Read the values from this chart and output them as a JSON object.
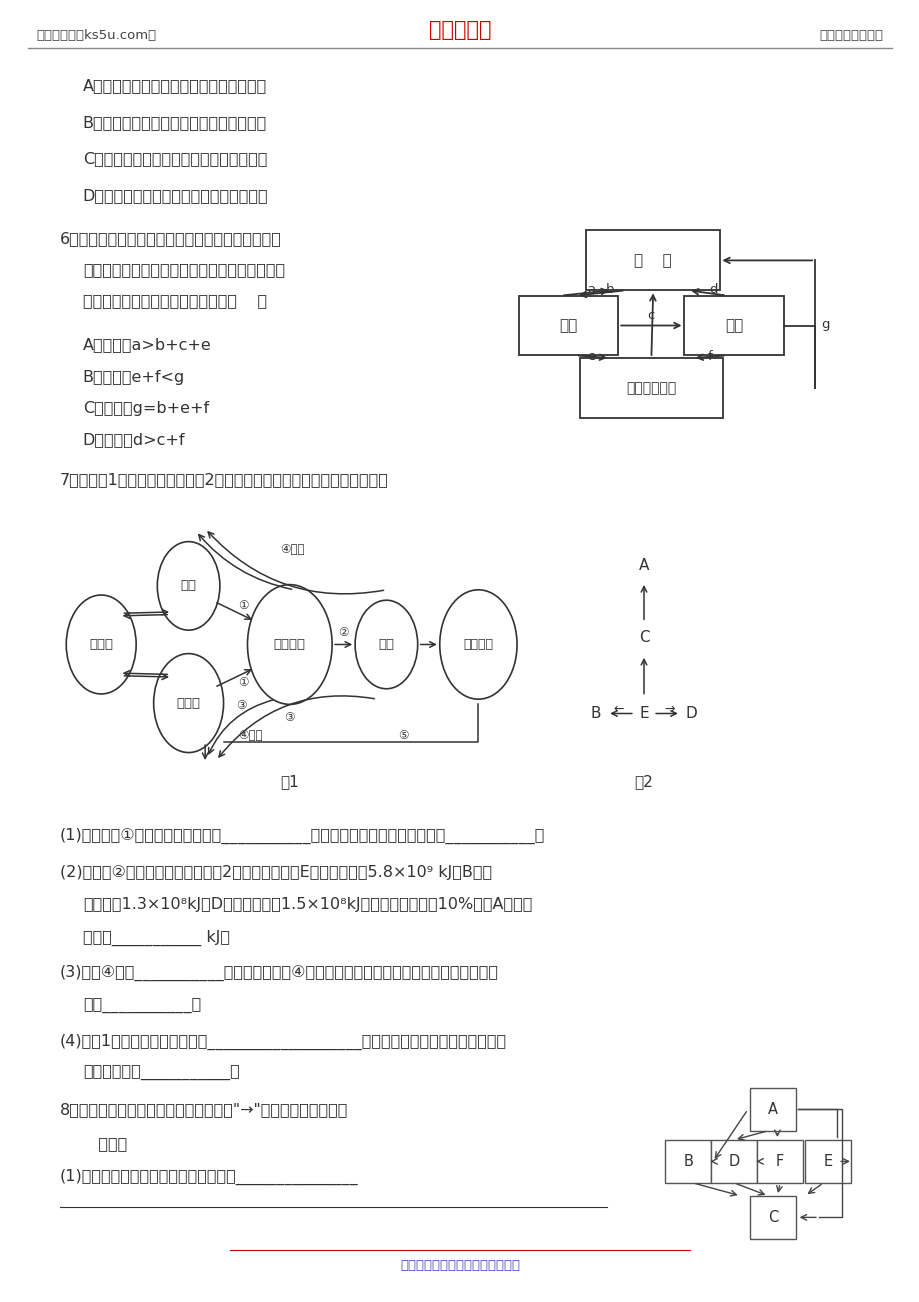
{
  "bg_color": "#ffffff",
  "header_left": "高考资源网（ks5u.com）",
  "header_center": "高考资源网",
  "header_right": "您身边的高考专家",
  "header_center_color": "#cc0000",
  "footer_text": "高考资源网版权所有，侵权必究！",
  "footer_color": "#4444cc",
  "text_color": "#333333",
  "opt_A1": "A．甲为生产者，乙为分解者，丙为消费者",
  "opt_B1": "B．甲为消费者，乙为分解者，丙为生产者",
  "opt_C1": "C．甲为分解者，乙为生产者，丙为消费者",
  "opt_D1": "D．甲为生产者，乙为消费者，丙为分解者",
  "q6_line1": "6．我国北方处于平衡状态的某森林生态系统，其碳",
  "q6_line2": "素循环如下图，箭头和字母分别表示碳素传递的",
  "q6_line3": "方向和转移量。下列选项正确的是（    ）",
  "opt_A6": "A．夏季，a>b+c+e",
  "opt_B6": "B．秋季，e+f<g",
  "opt_C6": "C．春季，g=b+e+f",
  "opt_D6": "D．冬季，d>c+f",
  "q7_intro": "7．下面图1为碳循环示意图，图2为某一食物网示意图，请据图回答问题：",
  "q7_1": "(1)通过过程①，碳由无机环境中的___________转变成绿色植物（如玉米）中的___________。",
  "q7_2a": "(2)设过程②代表的生物之间有如图2所示的关系，若E种群的能量为5.8×10",
  "q7_2b": " kJ，B种群",
  "q7_2c": "   的能量为1.3×10",
  "q7_2d": "kJ，D种群的能量为1.5×10",
  "q7_2e": "kJ，能量传递效率为10%，则A种群的",
  "q7_2f": "   能量是___________ kJ。",
  "q7_3a": "(3)过程④表示___________作用。参与过程④的生物与同区域中的动植物等其他生物共同构",
  "q7_3b": "   成了___________。",
  "q7_4a": "(4)由图1可见，碳循环的特点是___________________。伴随着物质循环进行的能量流动",
  "q7_4b": "   具有的特点是___________。",
  "q8_intro": "8．下图是生态系统碳循环示意图，图中\"→\"表示碳的流动方向。",
  "q8_answer": "   回答：",
  "q8_1": "(1)写出图中含有四个营养级的食物链：_______________"
}
